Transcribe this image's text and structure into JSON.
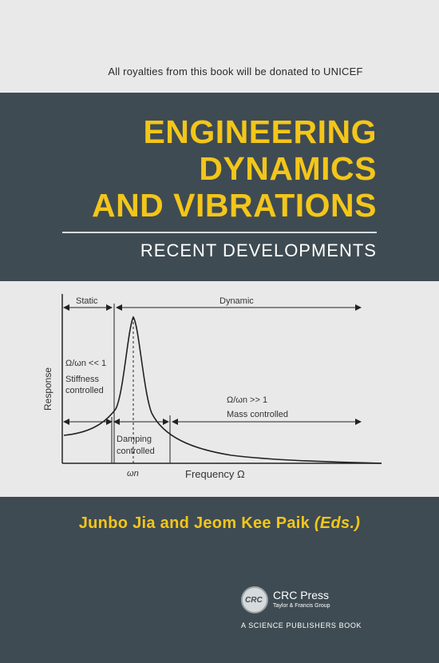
{
  "royalty_note": "All royalties from this book will be donated to UNICEF",
  "title_lines": [
    "ENGINEERING",
    "DYNAMICS",
    "AND VIBRATIONS"
  ],
  "subtitle": "RECENT DEVELOPMENTS",
  "figure": {
    "static_label": "Static",
    "dynamic_label": "Dynamic",
    "response_label": "Response",
    "low_ratio": "Ω/ωn << 1",
    "stiffness_1": "Stiffness",
    "stiffness_2": "controlled",
    "high_ratio": "Ω/ωn >> 1",
    "mass_label": "Mass controlled",
    "damping_1": "Damping",
    "damping_2": "controlled",
    "omega_n": "ωn",
    "frequency_label": "Frequency Ω"
  },
  "authors": "Junbo Jia and Jeom Kee Paik",
  "authors_eds": "(Eds.)",
  "publisher": {
    "logo_text": "CRC",
    "name": "CRC Press",
    "group": "Taylor & Francis Group",
    "series": "A SCIENCE PUBLISHERS BOOK"
  },
  "colors": {
    "band": "#3f4b52",
    "title": "#f3c61a",
    "background": "#e9e9ea"
  }
}
